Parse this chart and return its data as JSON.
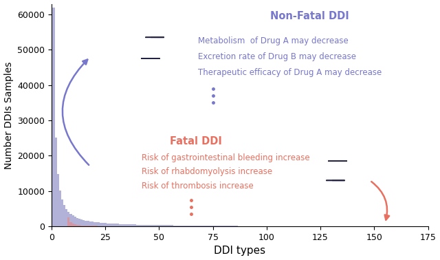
{
  "xlabel": "DDI types",
  "ylabel": "Number DDIs Samples",
  "xlim": [
    0,
    175
  ],
  "ylim": [
    0,
    63000
  ],
  "yticks": [
    0,
    10000,
    20000,
    30000,
    40000,
    50000,
    60000
  ],
  "xticks": [
    0,
    25,
    50,
    75,
    100,
    125,
    150,
    175
  ],
  "blue_color": "#9999cc",
  "red_color": "#e88888",
  "blue_text_color": "#7777cc",
  "red_text_color": "#e87060",
  "non_fatal_title": "Non-Fatal DDI",
  "non_fatal_lines": [
    "Metabolism  of Drug A may decrease",
    "Excretion rate of Drug B may decrease",
    "Therapeutic efficacy of Drug A may decrease"
  ],
  "fatal_title": "Fatal DDI",
  "fatal_lines": [
    "Risk of gastrointestinal bleeding increase",
    "Risk of rhabdomyolysis increase",
    "Risk of thrombosis increase"
  ],
  "blue_n": 86,
  "blue_max": 62000,
  "blue_exponent": 1.3,
  "red_n": 160,
  "red_start": 8,
  "red_max": 2500,
  "red_exponent": 1.1,
  "background_color": "#ffffff"
}
